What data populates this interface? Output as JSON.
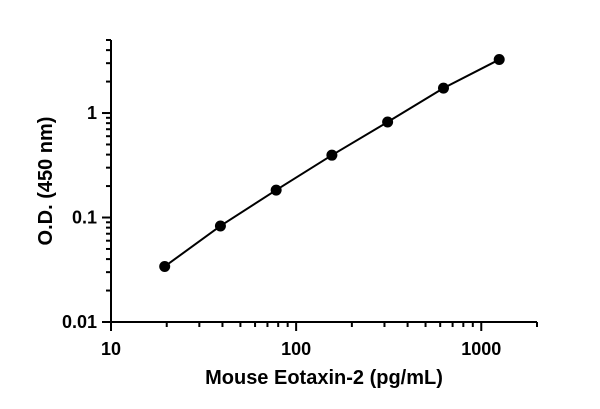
{
  "chart_data": {
    "type": "scatter",
    "title": "",
    "xlabel": "Mouse Eotaxin-2 (pg/mL)",
    "ylabel": "O.D. (450 nm)",
    "xscale": "log",
    "yscale": "log",
    "xlim": [
      10,
      2000
    ],
    "ylim": [
      0.01,
      5
    ],
    "x_ticks": [
      10,
      100,
      1000
    ],
    "x_tick_labels": [
      "10",
      "100",
      "1000"
    ],
    "y_ticks": [
      0.01,
      0.1,
      1
    ],
    "y_tick_labels": [
      "0.01",
      "0.1",
      "1"
    ],
    "grid": false,
    "legend": "none",
    "series": [
      {
        "x": [
          19.5,
          39,
          78,
          156,
          312,
          625,
          1250
        ],
        "y": [
          0.034,
          0.083,
          0.183,
          0.395,
          0.82,
          1.73,
          3.25
        ],
        "marker": "circle",
        "fit_line": true,
        "color": "#000000"
      }
    ]
  }
}
